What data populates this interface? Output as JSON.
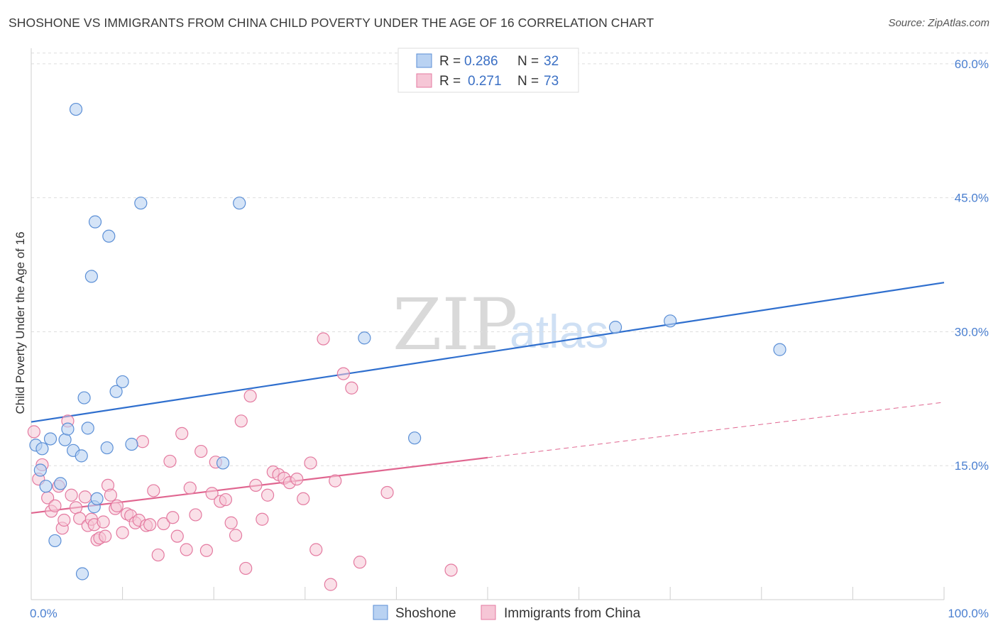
{
  "title": "SHOSHONE VS IMMIGRANTS FROM CHINA CHILD POVERTY UNDER THE AGE OF 16 CORRELATION CHART",
  "source": "Source: ZipAtlas.com",
  "watermark": {
    "zip": "ZIP",
    "atlas": "atlas"
  },
  "colors": {
    "shoshone": "#5b8fd6",
    "shoshone_fill": "#b9d2f2",
    "shoshone_line": "#2f6fce",
    "china": "#e47aa0",
    "china_fill": "#f6c6d6",
    "china_line": "#e06690",
    "grid": "#dedede",
    "axis_label": "#4a7fd0"
  },
  "legend": {
    "items": [
      {
        "r_label": "R =",
        "r_value": "0.286",
        "n_label": "N =",
        "n_value": "32"
      },
      {
        "r_label": "R =",
        "r_value": "0.271",
        "n_label": "N =",
        "n_value": "73"
      }
    ]
  },
  "bottom_legend": {
    "items": [
      "Shoshone",
      "Immigrants from China"
    ]
  },
  "chart_data": {
    "type": "scatter",
    "title": "SHOSHONE VS IMMIGRANTS FROM CHINA CHILD POVERTY UNDER THE AGE OF 16 CORRELATION CHART",
    "xlabel": "",
    "ylabel": "Child Poverty Under the Age of 16",
    "xlim": [
      0,
      100
    ],
    "ylim": [
      0,
      61.5
    ],
    "x_tick_labels": [
      "0.0%",
      "100.0%"
    ],
    "y_ticks": [
      15,
      30,
      45,
      60
    ],
    "y_tick_labels": [
      "15.0%",
      "30.0%",
      "45.0%",
      "60.0%"
    ],
    "grid": true,
    "legend_placement": "top-center",
    "series": [
      {
        "name": "Shoshone",
        "r": 0.286,
        "n": 32,
        "trend": {
          "x": [
            0,
            100
          ],
          "y": [
            19.9,
            35.5
          ]
        },
        "x": [
          0.5,
          1.0,
          1.2,
          1.6,
          2.1,
          2.6,
          3.2,
          3.7,
          4.0,
          4.6,
          4.9,
          5.5,
          5.6,
          5.8,
          6.2,
          6.6,
          6.9,
          7.0,
          7.2,
          8.3,
          8.5,
          9.3,
          10.0,
          11.0,
          12.0,
          21.0,
          22.8,
          36.5,
          42.0,
          64.0,
          70.0,
          82.0
        ],
        "y": [
          17.3,
          14.5,
          16.9,
          12.7,
          18.0,
          6.6,
          13.0,
          17.9,
          19.1,
          16.7,
          54.9,
          16.1,
          2.9,
          22.6,
          19.2,
          36.2,
          10.4,
          42.3,
          11.3,
          17.0,
          40.7,
          23.3,
          24.4,
          17.4,
          44.4,
          15.3,
          44.4,
          29.3,
          18.1,
          30.5,
          31.2,
          28.0
        ]
      },
      {
        "name": "Immigrants from China",
        "r": 0.271,
        "n": 73,
        "trend": {
          "x": [
            0,
            50
          ],
          "y": [
            9.7,
            15.9
          ]
        },
        "trend_extended": {
          "x": [
            50,
            100
          ],
          "y": [
            15.9,
            22.1
          ]
        },
        "x": [
          0.3,
          0.8,
          1.2,
          1.8,
          2.2,
          2.6,
          3.0,
          3.4,
          3.6,
          4.0,
          4.4,
          4.9,
          5.3,
          5.9,
          6.2,
          6.6,
          6.9,
          7.2,
          7.5,
          7.9,
          8.1,
          8.4,
          8.7,
          9.2,
          9.4,
          10.0,
          10.5,
          10.9,
          11.4,
          11.8,
          12.2,
          12.6,
          13.0,
          13.4,
          13.9,
          14.5,
          15.2,
          15.5,
          16.0,
          16.5,
          17.0,
          17.4,
          18.0,
          18.6,
          19.2,
          19.8,
          20.2,
          20.7,
          21.3,
          21.9,
          22.4,
          23.0,
          23.5,
          24.0,
          24.6,
          25.3,
          25.9,
          26.5,
          27.1,
          27.7,
          28.3,
          29.1,
          29.8,
          30.6,
          31.2,
          32.0,
          32.8,
          33.3,
          34.2,
          35.1,
          36.0,
          39.0,
          46.0
        ],
        "y": [
          18.8,
          13.5,
          15.1,
          11.4,
          9.9,
          10.5,
          12.7,
          8.0,
          8.9,
          20.0,
          11.7,
          10.3,
          9.1,
          11.5,
          8.3,
          9.0,
          8.4,
          6.7,
          6.9,
          8.7,
          7.1,
          12.8,
          11.7,
          10.2,
          10.5,
          7.5,
          9.6,
          9.4,
          8.6,
          8.9,
          17.7,
          8.3,
          8.4,
          12.2,
          5.0,
          8.5,
          15.5,
          9.2,
          7.1,
          18.6,
          5.6,
          12.5,
          9.5,
          16.6,
          5.5,
          11.9,
          15.4,
          11.0,
          11.2,
          8.6,
          7.2,
          20.0,
          3.5,
          22.8,
          12.8,
          9.0,
          11.7,
          14.3,
          14.0,
          13.6,
          13.1,
          13.5,
          11.3,
          15.3,
          5.6,
          29.2,
          1.7,
          13.3,
          25.3,
          23.7,
          4.2,
          12.0,
          3.3
        ]
      }
    ]
  }
}
